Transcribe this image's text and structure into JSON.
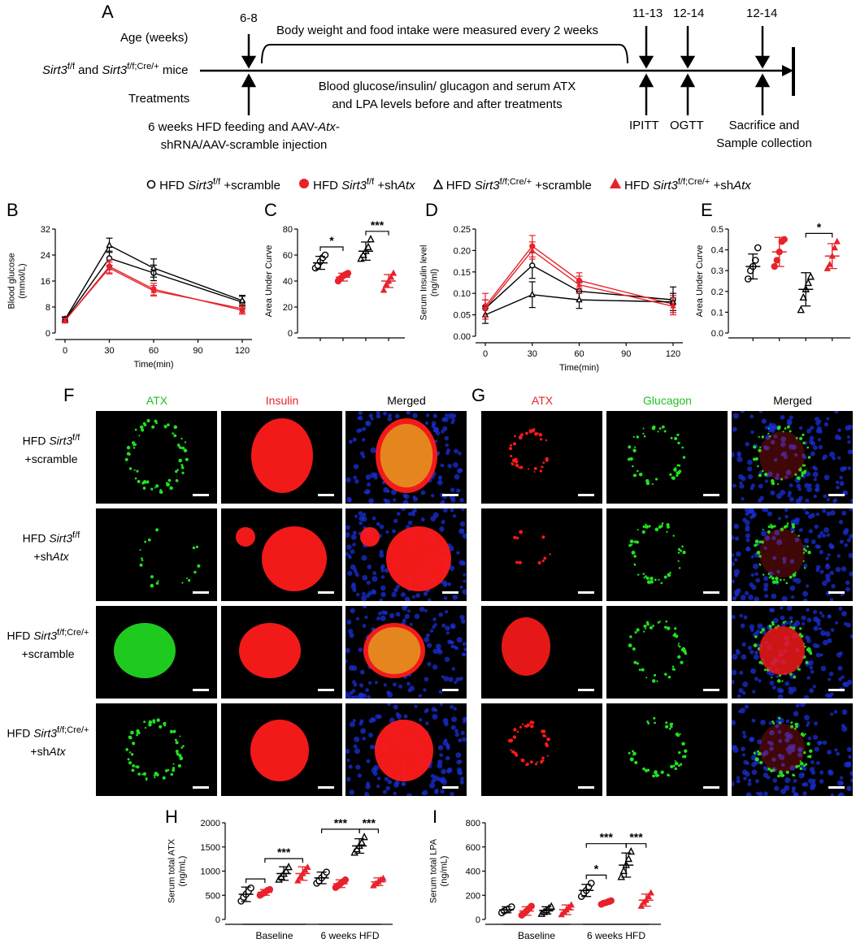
{
  "panel_letters": {
    "A": "A",
    "B": "B",
    "C": "C",
    "D": "D",
    "E": "E",
    "F": "F",
    "G": "G",
    "H": "H",
    "I": "I"
  },
  "timeline": {
    "age_label": "Age (weeks)",
    "mice_label_part1": "Sirt3",
    "mice_label_sup1": "f/f",
    "mice_label_part2": " and ",
    "mice_label_part3": "Sirt3",
    "mice_label_sup2": "f/f;Cre/+",
    "mice_label_part4": " mice",
    "treatments_label": "Treatments",
    "age_start": "6-8",
    "age_itt": "11-13",
    "age_ogtt": "12-14",
    "age_sac": "12-14",
    "bracket_text": "Body weight and food intake were measured every 2 weeks",
    "blood_text_line1": "Blood glucose/insulin/ glucagon and serum ATX",
    "blood_text_line2": "and LPA levels before and after treatments",
    "hfd_line1": "6 weeks HFD feeding and AAV-",
    "hfd_line1_italic": "Atx",
    "hfd_line1_end": "-",
    "hfd_line2": "shRNA/AAV-scramble injection",
    "ipitt": "IPITT",
    "ogtt": "OGTT",
    "sac_line1": "Sacrifice and",
    "sac_line2": "Sample collection"
  },
  "legend": [
    {
      "prefix": "HFD ",
      "gene": "Sirt3",
      "sup": "f/f",
      "suffix": " +scramble",
      "marker": "open-circle",
      "color": "#000000"
    },
    {
      "prefix": "HFD ",
      "gene": "Sirt3",
      "sup": "f/f",
      "suffix": " +sh",
      "suffix_italic": "Atx",
      "marker": "filled-circle",
      "color": "#e8222b"
    },
    {
      "prefix": "HFD ",
      "gene": "Sirt3",
      "sup": "f/f;Cre/+",
      "suffix": " +scramble",
      "marker": "open-triangle",
      "color": "#000000"
    },
    {
      "prefix": "HFD ",
      "gene": "Sirt3",
      "sup": "f/f;Cre/+",
      "suffix": " +sh",
      "suffix_italic": "Atx",
      "marker": "filled-triangle",
      "color": "#e8222b"
    }
  ],
  "colors": {
    "black": "#000000",
    "red": "#e8222b",
    "dapi": "#1a2fd6",
    "green": "#22e022",
    "insulin_red": "#ff1a1a"
  },
  "chart_data": [
    {
      "id": "B",
      "type": "line",
      "xlabel": "Time(min)",
      "ylabel": "Blood glucose\n(mmol/L)",
      "x": [
        0,
        30,
        60,
        90,
        120
      ],
      "xticks": [
        "0",
        "30",
        "60",
        "90",
        "120"
      ],
      "ylim": [
        0,
        32
      ],
      "yticks": [
        "0",
        "8",
        "16",
        "24",
        "32"
      ],
      "series": [
        {
          "color": "#000000",
          "x": [
            0,
            30,
            60,
            120
          ],
          "y": [
            4.0,
            23.0,
            18.5,
            9.5
          ],
          "err": [
            0.8,
            2.2,
            2.4,
            1.8
          ]
        },
        {
          "color": "#e8222b",
          "x": [
            0,
            30,
            60,
            120
          ],
          "y": [
            3.8,
            20.5,
            13.5,
            7.0
          ],
          "err": [
            0.7,
            2.0,
            1.8,
            1.2
          ]
        },
        {
          "color": "#000000",
          "x": [
            0,
            30,
            60,
            120
          ],
          "y": [
            4.2,
            27.0,
            20.0,
            10.0
          ],
          "err": [
            0.8,
            2.2,
            2.8,
            1.6
          ]
        },
        {
          "color": "#e8222b",
          "x": [
            0,
            30,
            60,
            120
          ],
          "y": [
            3.9,
            20.0,
            13.0,
            7.5
          ],
          "err": [
            0.7,
            1.8,
            1.6,
            1.3
          ]
        }
      ]
    },
    {
      "id": "C",
      "type": "scatter",
      "ylabel": "Area Under Curve",
      "ylim": [
        0,
        80
      ],
      "yticks": [
        "0",
        "20",
        "40",
        "60",
        "80"
      ],
      "groups": [
        {
          "marker": "open-circle",
          "color": "#000000",
          "mean": 54,
          "sd": 5,
          "points": [
            50,
            52,
            55,
            58,
            60
          ]
        },
        {
          "marker": "filled-circle",
          "color": "#e8222b",
          "mean": 43,
          "sd": 3,
          "points": [
            40,
            42,
            44,
            45,
            46
          ]
        },
        {
          "marker": "open-triangle",
          "color": "#000000",
          "mean": 63,
          "sd": 7,
          "points": [
            57,
            60,
            63,
            66,
            72
          ]
        },
        {
          "marker": "filled-triangle",
          "color": "#e8222b",
          "mean": 40,
          "sd": 5,
          "points": [
            33,
            37,
            40,
            43,
            46
          ]
        }
      ],
      "significance": [
        {
          "from": 0,
          "to": 1,
          "label": "*"
        },
        {
          "from": 2,
          "to": 3,
          "label": "***"
        }
      ]
    },
    {
      "id": "D",
      "type": "line",
      "xlabel": "Time(min)",
      "ylabel": "Serum Insulin level\n(ng/ml)",
      "x": [
        0,
        30,
        60,
        90,
        120
      ],
      "xticks": [
        "0",
        "30",
        "60",
        "90",
        "120"
      ],
      "ylim": [
        0,
        0.25
      ],
      "yticks": [
        "0.00",
        "0.05",
        "0.10",
        "0.15",
        "0.20",
        "0.25"
      ],
      "series": [
        {
          "color": "#000000",
          "x": [
            0,
            30,
            60,
            120
          ],
          "y": [
            0.065,
            0.165,
            0.105,
            0.085
          ],
          "err": [
            0.02,
            0.03,
            0.02,
            0.03
          ]
        },
        {
          "color": "#e8222b",
          "x": [
            0,
            30,
            60,
            120
          ],
          "y": [
            0.07,
            0.21,
            0.13,
            0.075
          ],
          "err": [
            0.03,
            0.025,
            0.018,
            0.02
          ]
        },
        {
          "color": "#000000",
          "x": [
            0,
            30,
            60,
            120
          ],
          "y": [
            0.05,
            0.097,
            0.085,
            0.08
          ],
          "err": [
            0.02,
            0.03,
            0.02,
            0.02
          ]
        },
        {
          "color": "#e8222b",
          "x": [
            0,
            30,
            60,
            120
          ],
          "y": [
            0.065,
            0.2,
            0.12,
            0.07
          ],
          "err": [
            0.02,
            0.02,
            0.02,
            0.02
          ]
        }
      ]
    },
    {
      "id": "E",
      "type": "scatter",
      "ylabel": "Area Under Curve",
      "ylim": [
        0,
        0.5
      ],
      "yticks": [
        "0.0",
        "0.1",
        "0.2",
        "0.3",
        "0.4",
        "0.5"
      ],
      "groups": [
        {
          "marker": "open-circle",
          "color": "#000000",
          "mean": 0.32,
          "sd": 0.06,
          "points": [
            0.26,
            0.3,
            0.32,
            0.35,
            0.41
          ]
        },
        {
          "marker": "filled-circle",
          "color": "#e8222b",
          "mean": 0.39,
          "sd": 0.07,
          "points": [
            0.32,
            0.35,
            0.39,
            0.44,
            0.45
          ]
        },
        {
          "marker": "open-triangle",
          "color": "#000000",
          "mean": 0.21,
          "sd": 0.08,
          "points": [
            0.11,
            0.17,
            0.21,
            0.24,
            0.27
          ]
        },
        {
          "marker": "filled-triangle",
          "color": "#e8222b",
          "mean": 0.37,
          "sd": 0.06,
          "points": [
            0.31,
            0.33,
            0.37,
            0.41,
            0.44
          ]
        }
      ],
      "significance": [
        {
          "from": 2,
          "to": 3,
          "label": "*"
        }
      ]
    },
    {
      "id": "H",
      "type": "scatter",
      "ylabel": "Serum total ATX\n(ng/mL)",
      "ylim": [
        0,
        2000
      ],
      "yticks": [
        "0",
        "500",
        "1000",
        "1500",
        "2000"
      ],
      "categories": [
        "Baseline",
        "6 weeks HFD"
      ],
      "groups": [
        {
          "cat": 0,
          "marker": "open-circle",
          "color": "#000000",
          "mean": 520,
          "sd": 150,
          "points": [
            380,
            460,
            520,
            580,
            650
          ]
        },
        {
          "cat": 0,
          "marker": "filled-circle",
          "color": "#e8222b",
          "mean": 560,
          "sd": 60,
          "points": [
            500,
            530,
            560,
            600,
            620
          ]
        },
        {
          "cat": 0,
          "marker": "open-triangle",
          "color": "#000000",
          "mean": 950,
          "sd": 140,
          "points": [
            820,
            880,
            940,
            1000,
            1080
          ]
        },
        {
          "cat": 0,
          "marker": "filled-triangle",
          "color": "#e8222b",
          "mean": 950,
          "sd": 140,
          "points": [
            800,
            880,
            950,
            1020,
            1080
          ]
        },
        {
          "cat": 1,
          "marker": "open-circle",
          "color": "#000000",
          "mean": 860,
          "sd": 120,
          "points": [
            750,
            800,
            860,
            920,
            980
          ]
        },
        {
          "cat": 1,
          "marker": "filled-circle",
          "color": "#e8222b",
          "mean": 740,
          "sd": 80,
          "points": [
            660,
            700,
            740,
            780,
            820
          ]
        },
        {
          "cat": 1,
          "marker": "open-triangle",
          "color": "#000000",
          "mean": 1520,
          "sd": 150,
          "points": [
            1380,
            1450,
            1520,
            1590,
            1700
          ]
        },
        {
          "cat": 1,
          "marker": "filled-triangle",
          "color": "#e8222b",
          "mean": 780,
          "sd": 80,
          "points": [
            700,
            740,
            780,
            820,
            850
          ]
        }
      ],
      "significance": [
        {
          "from": 0,
          "to": 1,
          "label": ""
        },
        {
          "from": 1,
          "to": 3,
          "label": "***"
        },
        {
          "from": 4,
          "to": 6,
          "label": "***"
        },
        {
          "from": 6,
          "to": 7,
          "label": "***"
        }
      ]
    },
    {
      "id": "I",
      "type": "scatter",
      "ylabel": "Serum total LPA\n(ng/mL)",
      "ylim": [
        0,
        800
      ],
      "yticks": [
        "0",
        "200",
        "400",
        "600",
        "800"
      ],
      "categories": [
        "Baseline",
        "6 weeks HFD"
      ],
      "groups": [
        {
          "cat": 0,
          "marker": "open-circle",
          "color": "#000000",
          "mean": 80,
          "sd": 25,
          "points": [
            55,
            70,
            80,
            90,
            105
          ]
        },
        {
          "cat": 0,
          "marker": "filled-circle",
          "color": "#e8222b",
          "mean": 70,
          "sd": 35,
          "points": [
            35,
            50,
            70,
            90,
            110
          ]
        },
        {
          "cat": 0,
          "marker": "open-triangle",
          "color": "#000000",
          "mean": 75,
          "sd": 30,
          "points": [
            45,
            60,
            75,
            90,
            105
          ]
        },
        {
          "cat": 0,
          "marker": "filled-triangle",
          "color": "#e8222b",
          "mean": 80,
          "sd": 40,
          "points": [
            40,
            60,
            80,
            100,
            120
          ]
        },
        {
          "cat": 1,
          "marker": "open-circle",
          "color": "#000000",
          "mean": 240,
          "sd": 50,
          "points": [
            190,
            220,
            240,
            270,
            300
          ]
        },
        {
          "cat": 1,
          "marker": "filled-circle",
          "color": "#e8222b",
          "mean": 140,
          "sd": 15,
          "points": [
            125,
            135,
            140,
            148,
            155
          ]
        },
        {
          "cat": 1,
          "marker": "open-triangle",
          "color": "#000000",
          "mean": 450,
          "sd": 100,
          "points": [
            350,
            400,
            450,
            500,
            560
          ]
        },
        {
          "cat": 1,
          "marker": "filled-triangle",
          "color": "#e8222b",
          "mean": 160,
          "sd": 50,
          "points": [
            110,
            140,
            160,
            190,
            220
          ]
        }
      ],
      "significance": [
        {
          "from": 4,
          "to": 5,
          "label": "*"
        },
        {
          "from": 4,
          "to": 6,
          "label": "***"
        },
        {
          "from": 6,
          "to": 7,
          "label": "***"
        }
      ]
    }
  ],
  "microscopy": {
    "F": {
      "columns": [
        "ATX",
        "Insulin",
        "Merged"
      ],
      "column_colors": [
        "#22c022",
        "#e8222b",
        "#000000"
      ],
      "rows": [
        {
          "line1": "HFD ",
          "gene": "Sirt3",
          "sup": "f/f",
          "line2": "+scramble",
          "line2_italic": ""
        },
        {
          "line1": "HFD ",
          "gene": "Sirt3",
          "sup": "f/f",
          "line2": "+sh",
          "line2_italic": "Atx"
        },
        {
          "line1": "HFD ",
          "gene": "Sirt3",
          "sup": "f/f;Cre/+",
          "line2": "+scramble",
          "line2_italic": ""
        },
        {
          "line1": "HFD ",
          "gene": "Sirt3",
          "sup": "f/f;Cre/+",
          "line2": "+sh",
          "line2_italic": "Atx"
        }
      ]
    },
    "G": {
      "columns": [
        "ATX",
        "Glucagon",
        "Merged"
      ],
      "column_colors": [
        "#e8222b",
        "#22c022",
        "#000000"
      ]
    }
  }
}
